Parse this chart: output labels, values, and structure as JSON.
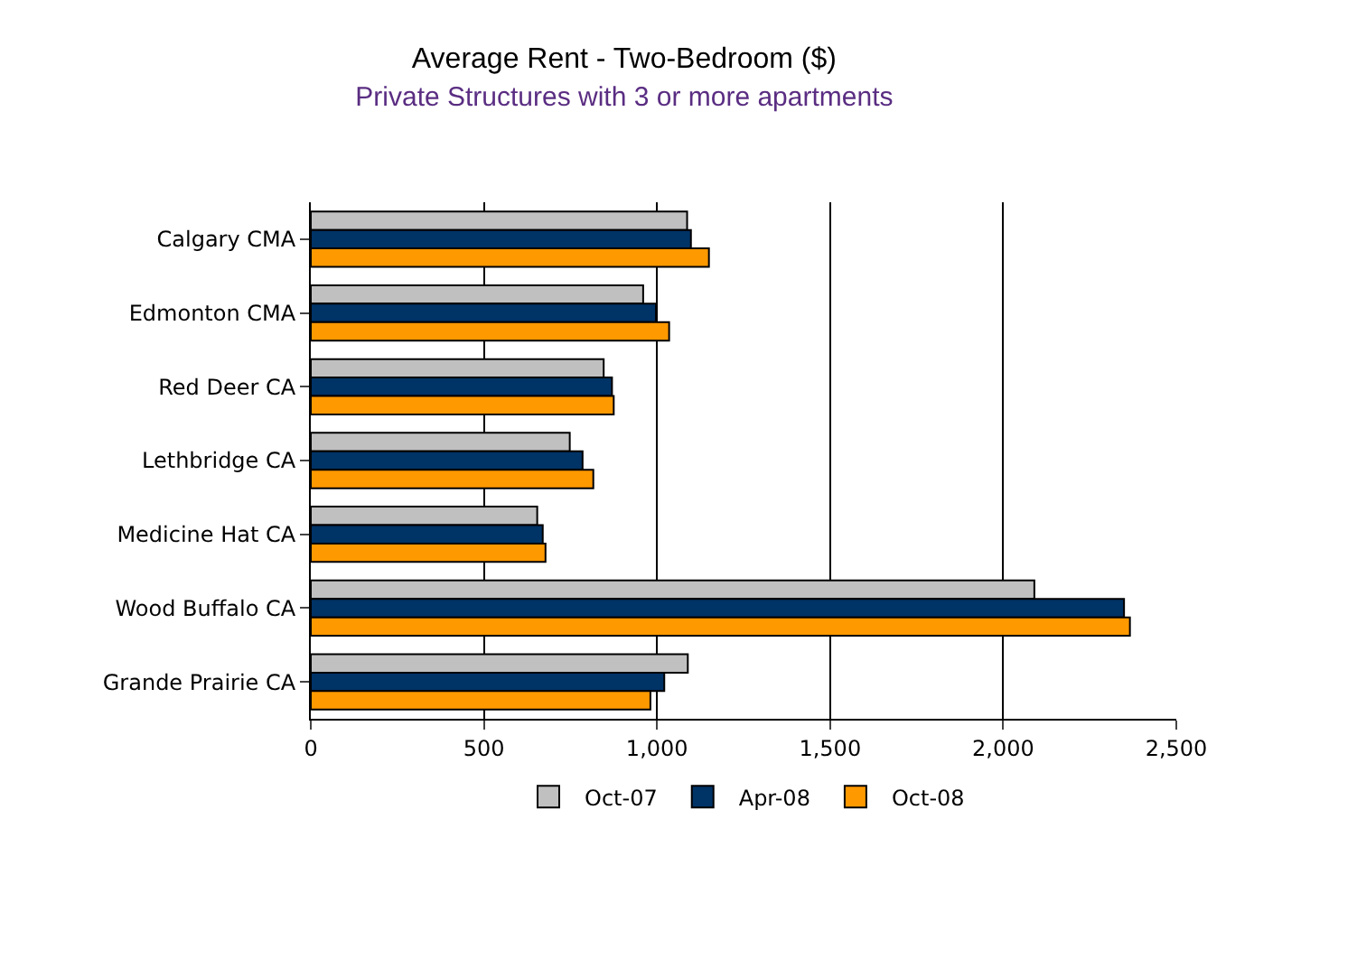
{
  "chart_data": {
    "type": "bar",
    "orientation": "horizontal",
    "title": "Average Rent - Two-Bedroom ($)",
    "subtitle": "Private Structures with 3 or more apartments",
    "categories": [
      "Calgary CMA",
      "Edmonton CMA",
      "Red Deer CA",
      "Lethbridge CA",
      "Medicine Hat CA",
      "Wood Buffalo CA",
      "Grande Prairie CA"
    ],
    "series": [
      {
        "name": "Oct-07",
        "color": "#c0c0c0",
        "values": [
          1087,
          960,
          846,
          748,
          654,
          2090,
          1089
        ]
      },
      {
        "name": "Apr-08",
        "color": "#003366",
        "values": [
          1098,
          997,
          870,
          785,
          670,
          2349,
          1021
        ]
      },
      {
        "name": "Oct-08",
        "color": "#ff9900",
        "values": [
          1150,
          1035,
          875,
          816,
          678,
          2366,
          981
        ]
      }
    ],
    "xlim": [
      0,
      2500
    ],
    "xticks": [
      0,
      500,
      {
        "value": 1000,
        "label": "1,000"
      },
      {
        "value": 1500,
        "label": "1,500"
      },
      {
        "value": 2000,
        "label": "2,000"
      },
      {
        "value": 2500,
        "label": "2,500"
      }
    ],
    "grid": "x",
    "legend": "bottom"
  }
}
